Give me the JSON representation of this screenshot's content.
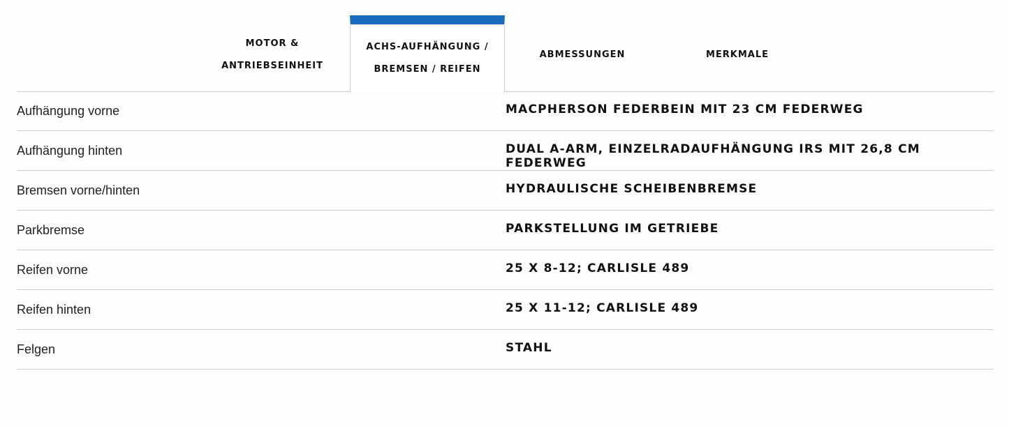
{
  "tabs": [
    {
      "label": "MOTOR & ANTRIEBSEINHEIT",
      "active": false
    },
    {
      "label": "ACHS-AUFHÄNGUNG / BREMSEN / REIFEN",
      "active": true
    },
    {
      "label": "ABMESSUNGEN",
      "active": false
    },
    {
      "label": "MERKMALE",
      "active": false
    }
  ],
  "accent_color": "#1a6bbd",
  "specs": [
    {
      "label": "Aufhängung vorne",
      "value": "MACPHERSON FEDERBEIN MIT 23 CM FEDERWEG"
    },
    {
      "label": "Aufhängung hinten",
      "value": "DUAL A-ARM, EINZELRADAUFHÄNGUNG IRS MIT 26,8 CM FEDERWEG"
    },
    {
      "label": "Bremsen vorne/hinten",
      "value": "HYDRAULISCHE SCHEIBENBREMSE"
    },
    {
      "label": "Parkbremse",
      "value": "PARKSTELLUNG IM GETRIEBE"
    },
    {
      "label": "Reifen vorne",
      "value": "25 X 8-12; CARLISLE 489"
    },
    {
      "label": "Reifen hinten",
      "value": "25 X 11-12; CARLISLE 489"
    },
    {
      "label": "Felgen",
      "value": "STAHL"
    }
  ]
}
